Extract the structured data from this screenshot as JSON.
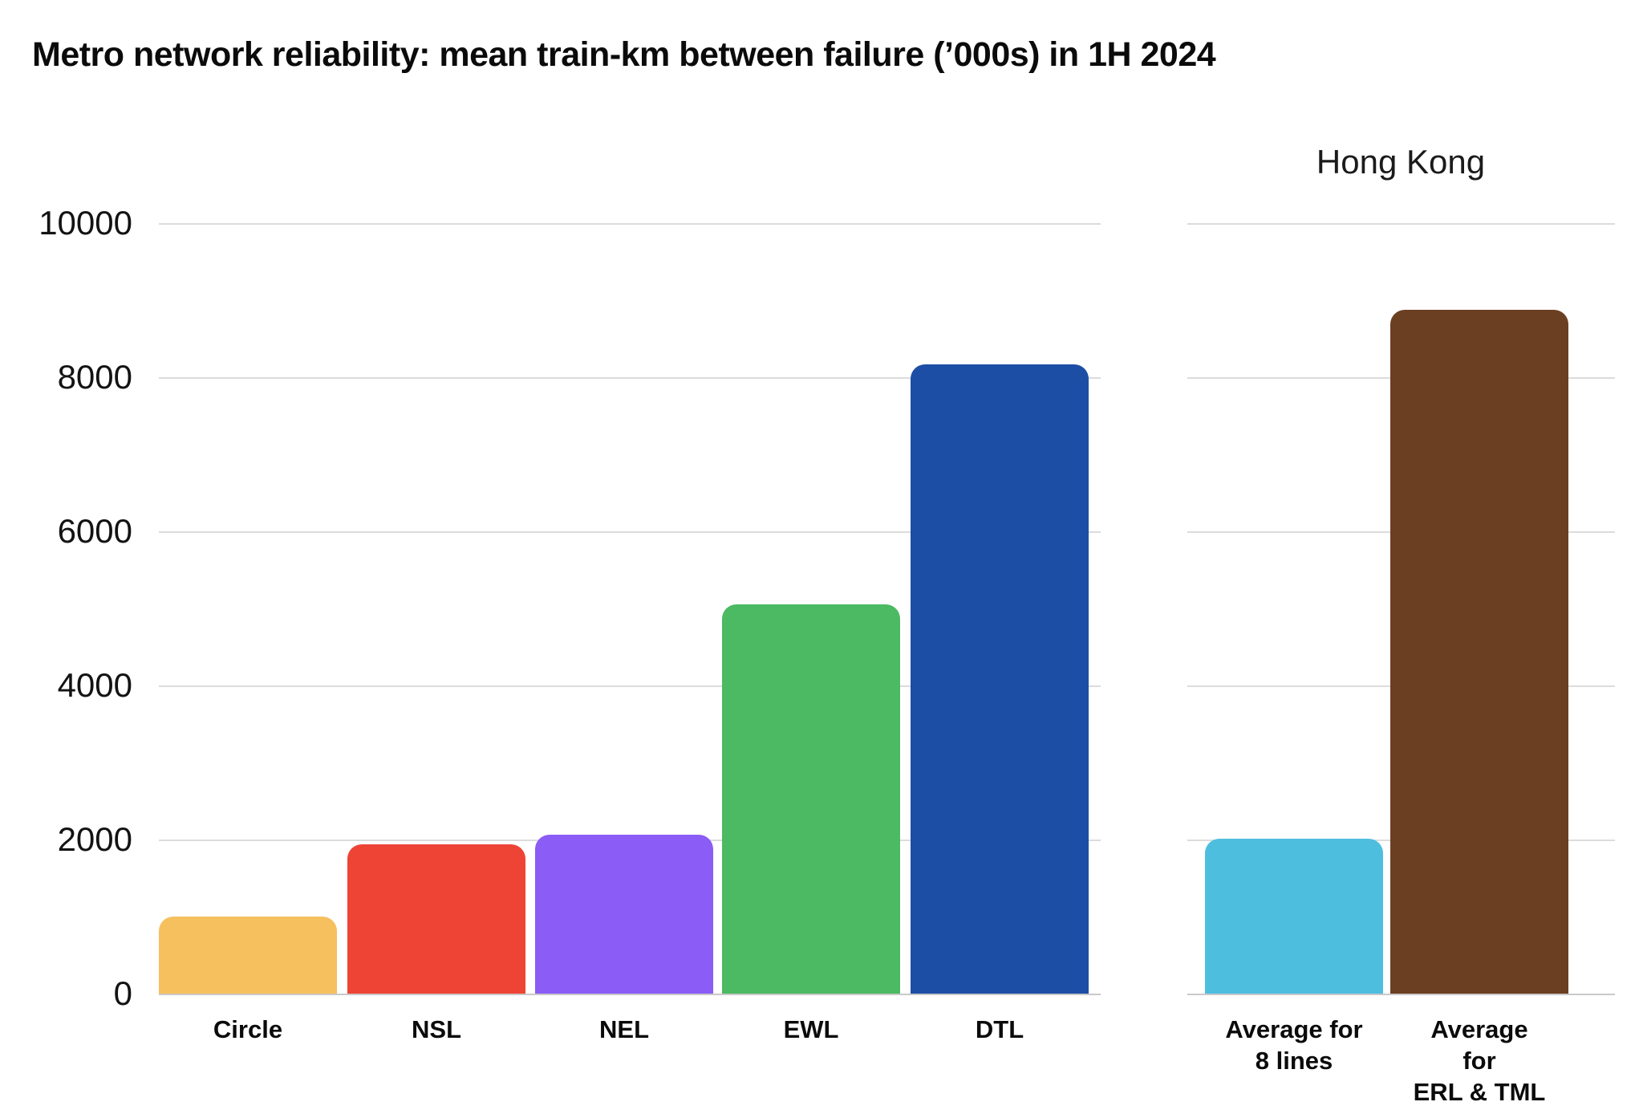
{
  "title": "Metro network reliability: mean train-km between failure (’000s) in 1H 2024",
  "chart_data": {
    "type": "bar",
    "title": "Metro network reliability: mean train-km between failure (’000s) in 1H 2024",
    "xlabel": "",
    "ylabel": "",
    "ylim": [
      0,
      10000
    ],
    "yticks": [
      0,
      2000,
      4000,
      6000,
      8000,
      10000
    ],
    "grid": true,
    "legend": "none",
    "panels": [
      {
        "name": "metro-lines",
        "heading": "",
        "categories": [
          "Circle",
          "NSL",
          "NEL",
          "EWL",
          "DTL"
        ],
        "values": [
          1000,
          1940,
          2060,
          5050,
          8165
        ],
        "colors": [
          "#F6C05E",
          "#EE4435",
          "#8B5CF6",
          "#4BBA63",
          "#1D4EA5"
        ]
      },
      {
        "name": "hong-kong",
        "heading": "Hong Kong",
        "categories": [
          "Average for\n8 lines",
          "Average for\nERL & TML"
        ],
        "values": [
          2015,
          8880
        ],
        "colors": [
          "#4EBEDF",
          "#6B3F21"
        ]
      }
    ]
  }
}
